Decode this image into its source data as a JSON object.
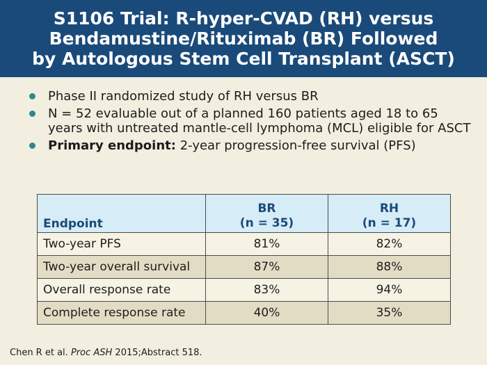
{
  "slide": {
    "title_lines": [
      "S1106 Trial: R-hyper-CVAD (RH) versus",
      "Bendamustine/Rituximab (BR) Followed",
      "by Autologous Stem Cell Transplant (ASCT)"
    ],
    "bullets": [
      {
        "bold": "",
        "text": "Phase II randomized study of RH versus BR"
      },
      {
        "bold": "",
        "text": "N = 52 evaluable out of a planned 160 patients aged 18 to 65 years with untreated mantle-cell lymphoma (MCL) eligible for ASCT"
      },
      {
        "bold": "Primary endpoint:",
        "text": " 2-year progression-free survival (PFS)"
      }
    ],
    "colors": {
      "title_bg": "#1a4a7a",
      "page_bg": "#f2efe0",
      "bullet_dot": "#2a8a8a",
      "header_bg": "#d6ecf6",
      "row_light": "#f6f3e4",
      "row_dark": "#e3dcc4"
    }
  },
  "table": {
    "headers": {
      "endpoint": "Endpoint",
      "br": {
        "name": "BR",
        "n": "(n = 35)"
      },
      "rh": {
        "name": "RH",
        "n": "(n = 17)"
      }
    },
    "rows": [
      {
        "label": "Two-year PFS",
        "br": "81%",
        "rh": "82%"
      },
      {
        "label": "Two-year overall survival",
        "br": "87%",
        "rh": "88%"
      },
      {
        "label": "Overall response rate",
        "br": "83%",
        "rh": "94%"
      },
      {
        "label": "Complete response rate",
        "br": "40%",
        "rh": "35%"
      }
    ]
  },
  "citation": {
    "authors": "Chen R et al.",
    "journal": "Proc ASH",
    "rest": "2015;Abstract 518."
  }
}
